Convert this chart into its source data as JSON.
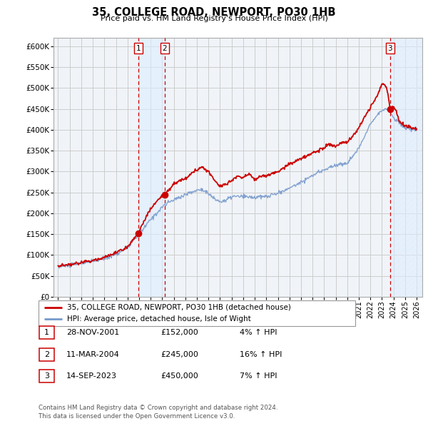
{
  "title": "35, COLLEGE ROAD, NEWPORT, PO30 1HB",
  "subtitle": "Price paid vs. HM Land Registry's House Price Index (HPI)",
  "ylabel_ticks": [
    "£0",
    "£50K",
    "£100K",
    "£150K",
    "£200K",
    "£250K",
    "£300K",
    "£350K",
    "£400K",
    "£450K",
    "£500K",
    "£550K",
    "£600K"
  ],
  "ylim": [
    0,
    620000
  ],
  "ytick_vals": [
    0,
    50000,
    100000,
    150000,
    200000,
    250000,
    300000,
    350000,
    400000,
    450000,
    500000,
    550000,
    600000
  ],
  "legend_line1": "35, COLLEGE ROAD, NEWPORT, PO30 1HB (detached house)",
  "legend_line2": "HPI: Average price, detached house, Isle of Wight",
  "transactions": [
    {
      "label": "1",
      "date": "28-NOV-2001",
      "price": 152000,
      "pct": "4%",
      "dir": "↑",
      "x": 2001.92
    },
    {
      "label": "2",
      "date": "11-MAR-2004",
      "price": 245000,
      "pct": "16%",
      "dir": "↑",
      "x": 2004.2
    },
    {
      "label": "3",
      "date": "14-SEP-2023",
      "price": 450000,
      "pct": "7%",
      "dir": "↑",
      "x": 2023.7
    }
  ],
  "footnote": "Contains HM Land Registry data © Crown copyright and database right 2024.\nThis data is licensed under the Open Government Licence v3.0.",
  "hpi_color": "#7799cc",
  "price_color": "#cc0000",
  "marker_color": "#cc0000",
  "shade_color": "#ddeeff",
  "hatch_color": "#ddeeff",
  "grid_color": "#cccccc",
  "bg_color": "#f0f4f8"
}
